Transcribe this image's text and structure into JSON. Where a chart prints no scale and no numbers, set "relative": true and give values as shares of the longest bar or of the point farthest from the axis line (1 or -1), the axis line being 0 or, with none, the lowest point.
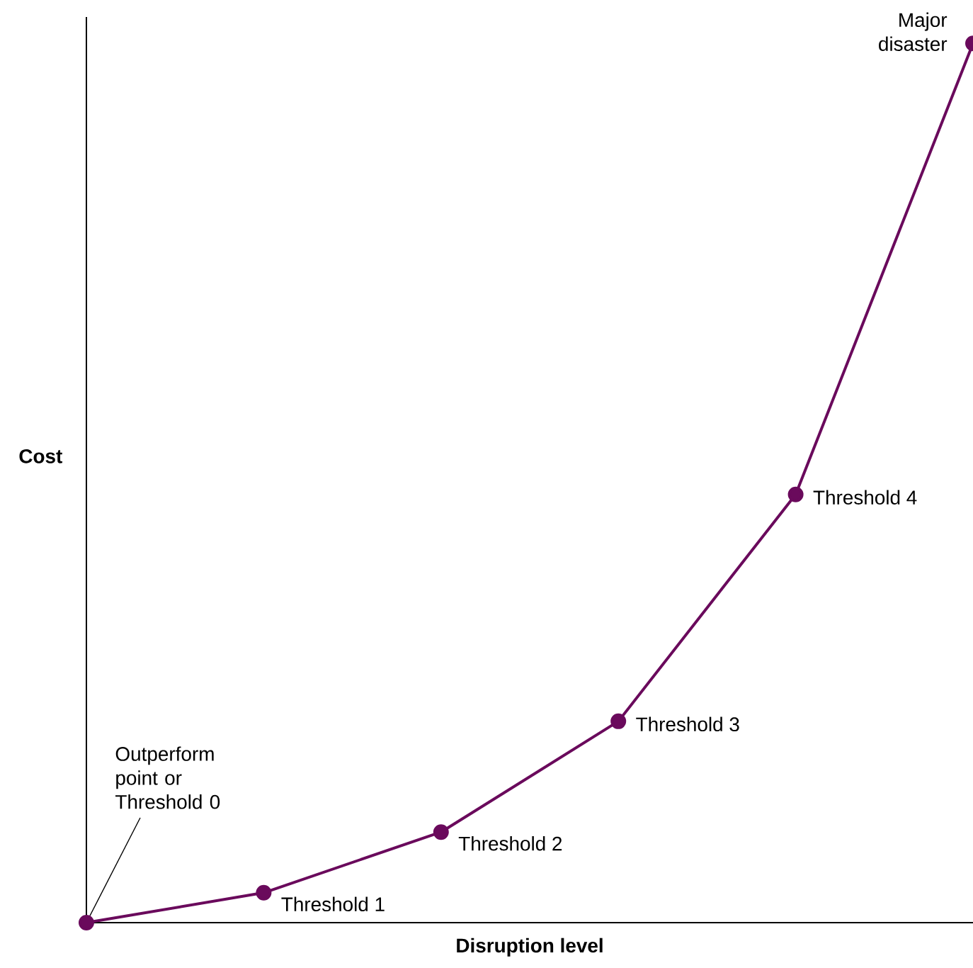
{
  "chart_data": {
    "type": "line",
    "relative": true,
    "xlabel": "Disruption level",
    "ylabel": "Cost",
    "categories": [
      null,
      null,
      null,
      null,
      null,
      null
    ],
    "values": [
      0,
      0.034,
      0.103,
      0.229,
      0.487,
      1
    ],
    "color": "#6a0a5c",
    "marker": "circle",
    "line_style": "solid",
    "annotations": [
      "Outperform point or Threshold 0",
      "Threshold 1",
      "Threshold 2",
      "Threshold 3",
      "Threshold 4",
      "Major disaster"
    ]
  }
}
